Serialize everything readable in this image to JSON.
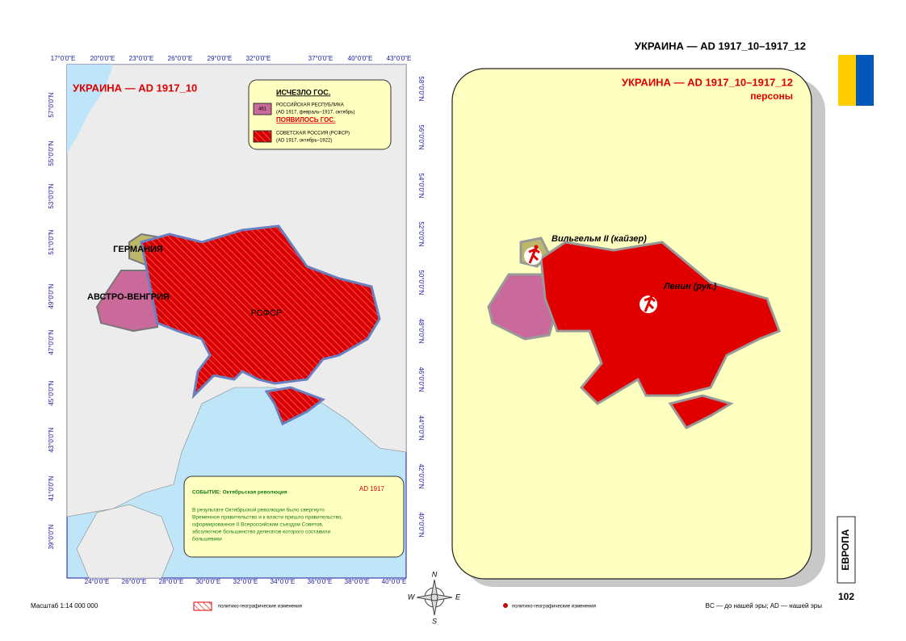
{
  "header": {
    "title": "УКРАИНА — AD 1917_10–1917_12"
  },
  "left_map": {
    "title": "УКРАИНА — AD 1917_10",
    "legend": {
      "disappeared_heading": "ИСЧЕЗЛО ГОС.",
      "disappeared_item": {
        "code": "461",
        "name": "РОССИЙСКАЯ РЕСПУБЛИКА",
        "dates": "(AD 1917, февраль–1917, октябрь)"
      },
      "appeared_heading": "ПОЯВИЛОСЬ ГОС.",
      "appeared_item": {
        "name": "СОВЕТСКАЯ РОССИЯ (РСФСР)",
        "dates": "(AD 1917, октябрь–1922)"
      }
    },
    "labels": [
      "ГЕРМАНИЯ",
      "АВСТРО-ВЕНГРИЯ",
      "РСФСР"
    ],
    "top_ticks": [
      "17°0'0\"E",
      "20°0'0\"E",
      "23°0'0\"E",
      "26°0'0\"E",
      "29°0'0\"E",
      "32°0'0\"E",
      "37°0'0\"E",
      "40°0'0\"E",
      "43°0'0\"E"
    ],
    "bottom_ticks": [
      "24°0'0\"E",
      "26°0'0\"E",
      "28°0'0\"E",
      "30°0'0\"E",
      "32°0'0\"E",
      "34°0'0\"E",
      "36°0'0\"E",
      "38°0'0\"E",
      "40°0'0\"E"
    ],
    "left_ticks": [
      "57°0'0\"N",
      "55°0'0\"N",
      "53°0'0\"N",
      "51°0'0\"N",
      "49°0'0\"N",
      "47°0'0\"N",
      "45°0'0\"N",
      "43°0'0\"N",
      "41°0'0\"N",
      "39°0'0\"N"
    ],
    "right_ticks": [
      "58°0'0\"N",
      "56°0'0\"N",
      "54°0'0\"N",
      "52°0'0\"N",
      "50°0'0\"N",
      "48°0'0\"N",
      "46°0'0\"N",
      "44°0'0\"N",
      "42°0'0\"N",
      "40°0'0\"N"
    ],
    "event": {
      "heading": "СОБЫТИЕ: Октябрьская революция",
      "date": "AD 1917",
      "lines": [
        "В результате Октябрьской революции было свергнуто",
        "Временное правительство и к власти пришло правительство,",
        "оформированное II Всероссийским съездом Советов,",
        "абсолютное большинство делегатов которого составили",
        "большевики"
      ]
    }
  },
  "right_map": {
    "title": "УКРАИНА — AD 1917_10–1917_12",
    "subtitle": "персоны",
    "persons": [
      "Вильгельм II (кайзер)",
      "Ленин (рук.)"
    ]
  },
  "compass": [
    "N",
    "W",
    "E",
    "S"
  ],
  "footer": {
    "scale": "Масштаб 1:14 000 000",
    "legend_hatch": "политико-географические изменения",
    "legend_dot": "политико-географические изменения",
    "era_note": "BC — до нашей эры; AD — нашей эры",
    "page": "102",
    "section": "ЕВРОПА"
  }
}
